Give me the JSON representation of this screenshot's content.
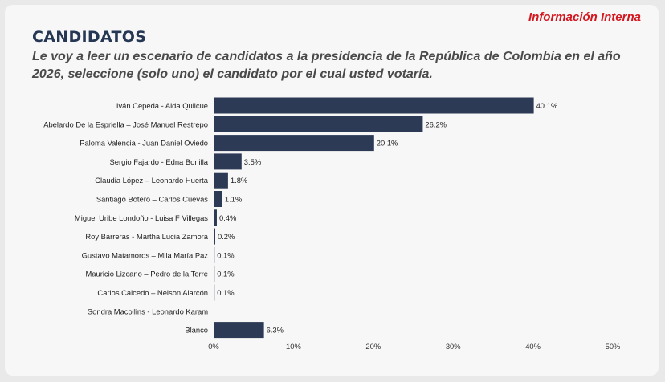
{
  "header": {
    "tag": "Información Interna",
    "title": "CANDIDATOS",
    "question": "Le voy a leer un escenario de candidatos a la presidencia de la República de Colombia en el año 2026, seleccione (solo uno) el candidato por el cual usted votaría."
  },
  "colors": {
    "bar": "#2d3a55",
    "tag": "#d4161e",
    "title": "#263754"
  },
  "chart_data": {
    "type": "bar",
    "orientation": "horizontal",
    "categories": [
      "Iván Cepeda - Aida Quilcue",
      "Abelardo De la Espriella – José Manuel Restrepo",
      "Paloma Valencia - Juan Daniel Oviedo",
      "Sergio Fajardo - Edna Bonilla",
      "Claudia López – Leonardo Huerta",
      "Santiago Botero – Carlos Cuevas",
      "Miguel Uribe Londoño - Luisa F Villegas",
      "Roy Barreras - Martha Lucia Zamora",
      "Gustavo Matamoros – Mila María Paz",
      "Mauricio Lizcano – Pedro de la Torre",
      "Carlos Caicedo – Nelson Alarcón",
      "Sondra Macollins - Leonardo Karam",
      "Blanco"
    ],
    "values": [
      40.1,
      26.2,
      20.1,
      3.5,
      1.8,
      1.1,
      0.4,
      0.2,
      0.1,
      0.1,
      0.1,
      null,
      6.3
    ],
    "data_labels": [
      "40.1%",
      "26.2%",
      "20.1%",
      "3.5%",
      "1.8%",
      "1.1%",
      "0.4%",
      "0.2%",
      "0.1%",
      "0.1%",
      "0.1%",
      "",
      "6.3%"
    ],
    "xlim": [
      0,
      50
    ],
    "xticks": [
      0,
      10,
      20,
      30,
      40,
      50
    ],
    "xtick_labels": [
      "0%",
      "10%",
      "20%",
      "30%",
      "40%",
      "50%"
    ],
    "grid": false
  }
}
